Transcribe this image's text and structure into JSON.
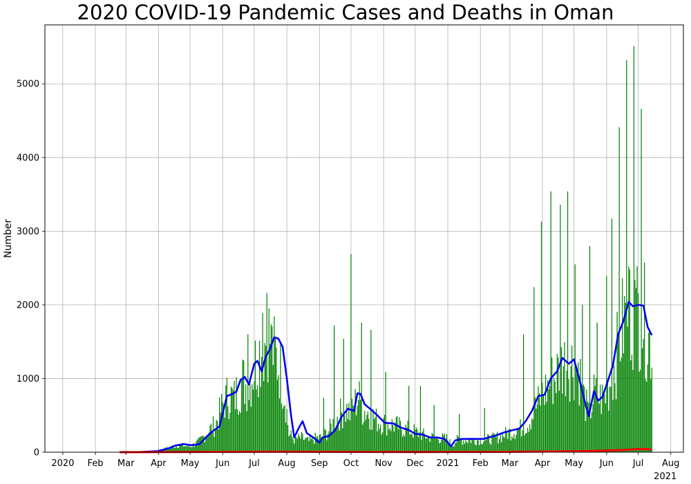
{
  "chart_data": {
    "type": "bar",
    "title": "2020 COVID-19 Pandemic Cases and Deaths in Oman",
    "xlabel": "",
    "ylabel": "Number",
    "x_ticks": [
      {
        "date": "2020-01-01",
        "label": "2020",
        "sub": ""
      },
      {
        "date": "2020-02-01",
        "label": "Feb",
        "sub": ""
      },
      {
        "date": "2020-03-01",
        "label": "Mar",
        "sub": ""
      },
      {
        "date": "2020-04-01",
        "label": "Apr",
        "sub": ""
      },
      {
        "date": "2020-05-01",
        "label": "May",
        "sub": ""
      },
      {
        "date": "2020-06-01",
        "label": "Jun",
        "sub": ""
      },
      {
        "date": "2020-07-01",
        "label": "Jul",
        "sub": ""
      },
      {
        "date": "2020-08-01",
        "label": "Aug",
        "sub": ""
      },
      {
        "date": "2020-09-01",
        "label": "Sep",
        "sub": ""
      },
      {
        "date": "2020-10-01",
        "label": "Oct",
        "sub": ""
      },
      {
        "date": "2020-11-01",
        "label": "Nov",
        "sub": ""
      },
      {
        "date": "2020-12-01",
        "label": "Dec",
        "sub": ""
      },
      {
        "date": "2021-01-01",
        "label": "2021",
        "sub": ""
      },
      {
        "date": "2021-02-01",
        "label": "Feb",
        "sub": ""
      },
      {
        "date": "2021-03-01",
        "label": "Mar",
        "sub": ""
      },
      {
        "date": "2021-04-01",
        "label": "Apr",
        "sub": ""
      },
      {
        "date": "2021-05-01",
        "label": "May",
        "sub": ""
      },
      {
        "date": "2021-06-01",
        "label": "Jun",
        "sub": ""
      },
      {
        "date": "2021-07-01",
        "label": "Jul",
        "sub": ""
      },
      {
        "date": "2021-08-01",
        "label": "Aug",
        "sub": "2021"
      }
    ],
    "y_ticks": [
      0,
      1000,
      2000,
      3000,
      4000,
      5000
    ],
    "xlim": [
      "2019-12-15",
      "2021-08-13"
    ],
    "ylim": [
      0,
      5800
    ],
    "grid": true,
    "legend": "none",
    "colors": {
      "daily_cases": "#008000",
      "cases_7day_average": "#0000ee",
      "deaths": "#ff0000"
    },
    "series": [
      {
        "kind": "bar",
        "color": "#008000",
        "start": "2020-02-24",
        "end": "2021-07-14",
        "values": [
          [
            "2020-02-24",
            2
          ],
          [
            "2020-03-15",
            5
          ],
          [
            "2020-03-31",
            20
          ],
          [
            "2020-04-10",
            60
          ],
          [
            "2020-04-20",
            100
          ],
          [
            "2020-05-01",
            80
          ],
          [
            "2020-05-10",
            150
          ],
          [
            "2020-05-20",
            320
          ],
          [
            "2020-05-25",
            380
          ],
          [
            "2020-06-01",
            650
          ],
          [
            "2020-06-06",
            800
          ],
          [
            "2020-06-12",
            750
          ],
          [
            "2020-06-20",
            1000
          ],
          [
            "2020-06-26",
            900
          ],
          [
            "2020-07-01",
            1200
          ],
          [
            "2020-07-06",
            1400
          ],
          [
            "2020-07-10",
            1500
          ],
          [
            "2020-07-14",
            1700
          ],
          [
            "2020-07-18",
            1450
          ],
          [
            "2020-07-22",
            1300
          ],
          [
            "2020-07-26",
            1150
          ],
          [
            "2020-07-31",
            700
          ],
          [
            "2020-08-03",
            250
          ],
          [
            "2020-08-08",
            180
          ],
          [
            "2020-08-15",
            200
          ],
          [
            "2020-08-22",
            150
          ],
          [
            "2020-08-29",
            200
          ],
          [
            "2020-09-03",
            200
          ],
          [
            "2020-09-10",
            300
          ],
          [
            "2020-09-16",
            450
          ],
          [
            "2020-09-22",
            550
          ],
          [
            "2020-09-28",
            600
          ],
          [
            "2020-10-01",
            500
          ],
          [
            "2020-10-04",
            650
          ],
          [
            "2020-10-08",
            780
          ],
          [
            "2020-10-12",
            600
          ],
          [
            "2020-10-18",
            550
          ],
          [
            "2020-10-25",
            450
          ],
          [
            "2020-11-01",
            400
          ],
          [
            "2020-11-10",
            380
          ],
          [
            "2020-11-20",
            330
          ],
          [
            "2020-12-01",
            280
          ],
          [
            "2020-12-10",
            230
          ],
          [
            "2020-12-20",
            200
          ],
          [
            "2020-12-31",
            190
          ],
          [
            "2021-01-05",
            100
          ],
          [
            "2021-01-10",
            170
          ],
          [
            "2021-01-25",
            170
          ],
          [
            "2021-02-10",
            180
          ],
          [
            "2021-02-20",
            220
          ],
          [
            "2021-03-01",
            280
          ],
          [
            "2021-03-10",
            320
          ],
          [
            "2021-03-18",
            400
          ],
          [
            "2021-03-25",
            600
          ],
          [
            "2021-04-01",
            800
          ],
          [
            "2021-04-10",
            1000
          ],
          [
            "2021-04-15",
            1100
          ],
          [
            "2021-04-20",
            1250
          ],
          [
            "2021-04-28",
            1250
          ],
          [
            "2021-05-05",
            1200
          ],
          [
            "2021-05-10",
            800
          ],
          [
            "2021-05-15",
            500
          ],
          [
            "2021-05-20",
            800
          ],
          [
            "2021-05-25",
            750
          ],
          [
            "2021-05-30",
            750
          ],
          [
            "2021-06-03",
            900
          ],
          [
            "2021-06-10",
            1300
          ],
          [
            "2021-06-15",
            1700
          ],
          [
            "2021-06-20",
            1900
          ],
          [
            "2021-06-25",
            2000
          ],
          [
            "2021-07-01",
            1950
          ],
          [
            "2021-07-05",
            2000
          ],
          [
            "2021-07-10",
            1600
          ],
          [
            "2021-07-14",
            1500
          ]
        ],
        "spikes": [
          [
            "2020-07-13",
            2160
          ],
          [
            "2020-07-09",
            1890
          ],
          [
            "2020-07-17",
            1740
          ],
          [
            "2020-06-25",
            1600
          ],
          [
            "2020-09-15",
            1720
          ],
          [
            "2020-09-24",
            1540
          ],
          [
            "2020-10-01",
            2690
          ],
          [
            "2020-10-11",
            1760
          ],
          [
            "2020-10-20",
            1660
          ],
          [
            "2020-11-03",
            1090
          ],
          [
            "2020-09-05",
            740
          ],
          [
            "2020-11-25",
            900
          ],
          [
            "2020-12-06",
            900
          ],
          [
            "2020-12-19",
            640
          ],
          [
            "2021-01-12",
            520
          ],
          [
            "2021-02-05",
            600
          ],
          [
            "2021-03-14",
            1600
          ],
          [
            "2021-03-24",
            2240
          ],
          [
            "2021-03-31",
            3130
          ],
          [
            "2021-04-09",
            3540
          ],
          [
            "2021-04-18",
            3360
          ],
          [
            "2021-04-25",
            3540
          ],
          [
            "2021-05-02",
            2550
          ],
          [
            "2021-05-09",
            2000
          ],
          [
            "2021-05-16",
            2800
          ],
          [
            "2021-05-23",
            1760
          ],
          [
            "2021-06-01",
            2390
          ],
          [
            "2021-06-06",
            3170
          ],
          [
            "2021-06-13",
            4410
          ],
          [
            "2021-06-20",
            5320
          ],
          [
            "2021-06-27",
            5510
          ],
          [
            "2021-07-04",
            4660
          ],
          [
            "2021-06-22",
            2520
          ],
          [
            "2021-06-29",
            2230
          ]
        ]
      },
      {
        "kind": "line",
        "color": "#0000ee",
        "points": [
          [
            "2020-02-24",
            0
          ],
          [
            "2020-03-15",
            3
          ],
          [
            "2020-03-31",
            15
          ],
          [
            "2020-04-10",
            50
          ],
          [
            "2020-04-17",
            90
          ],
          [
            "2020-04-25",
            110
          ],
          [
            "2020-05-02",
            95
          ],
          [
            "2020-05-10",
            110
          ],
          [
            "2020-05-16",
            200
          ],
          [
            "2020-05-22",
            280
          ],
          [
            "2020-05-29",
            350
          ],
          [
            "2020-06-05",
            760
          ],
          [
            "2020-06-10",
            790
          ],
          [
            "2020-06-14",
            820
          ],
          [
            "2020-06-18",
            980
          ],
          [
            "2020-06-22",
            1020
          ],
          [
            "2020-06-26",
            920
          ],
          [
            "2020-07-01",
            1200
          ],
          [
            "2020-07-04",
            1240
          ],
          [
            "2020-07-08",
            1100
          ],
          [
            "2020-07-12",
            1300
          ],
          [
            "2020-07-16",
            1400
          ],
          [
            "2020-07-20",
            1560
          ],
          [
            "2020-07-24",
            1540
          ],
          [
            "2020-07-28",
            1430
          ],
          [
            "2020-08-01",
            1000
          ],
          [
            "2020-08-05",
            500
          ],
          [
            "2020-08-08",
            200
          ],
          [
            "2020-08-12",
            320
          ],
          [
            "2020-08-16",
            420
          ],
          [
            "2020-08-20",
            260
          ],
          [
            "2020-08-26",
            200
          ],
          [
            "2020-09-01",
            130
          ],
          [
            "2020-09-04",
            200
          ],
          [
            "2020-09-10",
            220
          ],
          [
            "2020-09-16",
            300
          ],
          [
            "2020-09-22",
            480
          ],
          [
            "2020-09-28",
            590
          ],
          [
            "2020-10-04",
            560
          ],
          [
            "2020-10-07",
            800
          ],
          [
            "2020-10-10",
            790
          ],
          [
            "2020-10-14",
            650
          ],
          [
            "2020-10-20",
            580
          ],
          [
            "2020-10-26",
            500
          ],
          [
            "2020-11-02",
            400
          ],
          [
            "2020-11-10",
            390
          ],
          [
            "2020-11-18",
            330
          ],
          [
            "2020-11-25",
            300
          ],
          [
            "2020-12-01",
            250
          ],
          [
            "2020-12-08",
            240
          ],
          [
            "2020-12-15",
            200
          ],
          [
            "2020-12-22",
            200
          ],
          [
            "2020-12-29",
            180
          ],
          [
            "2021-01-04",
            80
          ],
          [
            "2021-01-08",
            160
          ],
          [
            "2021-01-14",
            180
          ],
          [
            "2021-01-24",
            180
          ],
          [
            "2021-02-04",
            180
          ],
          [
            "2021-02-14",
            220
          ],
          [
            "2021-02-24",
            270
          ],
          [
            "2021-03-04",
            300
          ],
          [
            "2021-03-10",
            320
          ],
          [
            "2021-03-16",
            420
          ],
          [
            "2021-03-22",
            560
          ],
          [
            "2021-03-28",
            760
          ],
          [
            "2021-04-03",
            780
          ],
          [
            "2021-04-09",
            1000
          ],
          [
            "2021-04-15",
            1100
          ],
          [
            "2021-04-20",
            1280
          ],
          [
            "2021-04-26",
            1200
          ],
          [
            "2021-05-01",
            1260
          ],
          [
            "2021-05-06",
            1000
          ],
          [
            "2021-05-11",
            700
          ],
          [
            "2021-05-15",
            490
          ],
          [
            "2021-05-20",
            830
          ],
          [
            "2021-05-24",
            700
          ],
          [
            "2021-05-28",
            750
          ],
          [
            "2021-06-02",
            960
          ],
          [
            "2021-06-07",
            1180
          ],
          [
            "2021-06-12",
            1600
          ],
          [
            "2021-06-17",
            1780
          ],
          [
            "2021-06-22",
            2040
          ],
          [
            "2021-06-26",
            1980
          ],
          [
            "2021-07-01",
            2000
          ],
          [
            "2021-07-06",
            1990
          ],
          [
            "2021-07-10",
            1700
          ],
          [
            "2021-07-14",
            1590
          ]
        ]
      },
      {
        "kind": "line",
        "color": "#ff0000",
        "points": [
          [
            "2020-02-24",
            0
          ],
          [
            "2020-06-01",
            5
          ],
          [
            "2020-08-01",
            6
          ],
          [
            "2020-12-01",
            3
          ],
          [
            "2021-03-01",
            5
          ],
          [
            "2021-04-15",
            10
          ],
          [
            "2021-05-15",
            15
          ],
          [
            "2021-06-15",
            28
          ],
          [
            "2021-06-28",
            40
          ],
          [
            "2021-07-05",
            45
          ],
          [
            "2021-07-14",
            35
          ]
        ]
      }
    ]
  }
}
